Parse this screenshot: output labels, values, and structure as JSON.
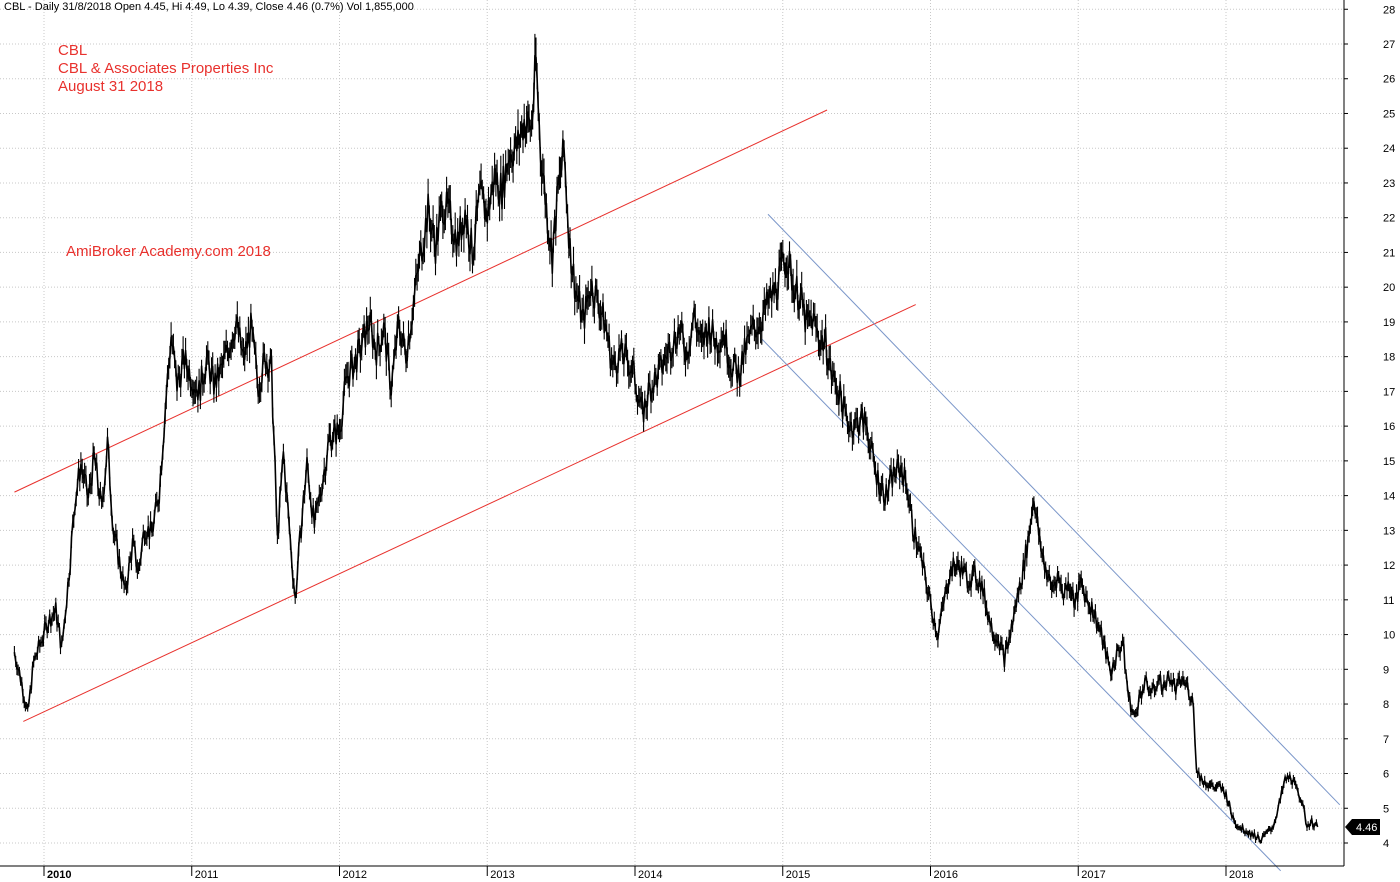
{
  "header": {
    "summary": "CBL - Daily 31/8/2018 Open 4.45, Hi 4.49, Lo 4.39, Close 4.46 (0.7%) Vol 1,855,000"
  },
  "annotations": {
    "ticker": "CBL",
    "company": "CBL & Associates Properties Inc",
    "date": "August 31 2018",
    "watermark": "AmiBroker Academy.com  2018"
  },
  "colors": {
    "price": "#000000",
    "up_channel": "#e8312d",
    "down_channel": "#7a96c9",
    "grid": "#c8c8c8",
    "badge": "#000000"
  },
  "chart_data": {
    "type": "line",
    "title": "CBL",
    "xlabel": "",
    "ylabel": "",
    "ylim": [
      4,
      28
    ],
    "xlim": [
      2009.8,
      2018.85
    ],
    "grid": true,
    "y_axis_side": "right",
    "y_ticks": [
      4,
      5,
      6,
      7,
      8,
      9,
      10,
      11,
      12,
      13,
      14,
      15,
      16,
      17,
      18,
      19,
      20,
      21,
      22,
      23,
      24,
      25,
      26,
      27,
      28
    ],
    "x_ticks": [
      {
        "label": "2010",
        "value": 2010.0,
        "bold": true
      },
      {
        "label": "2011",
        "value": 2011.0,
        "bold": false
      },
      {
        "label": "2012",
        "value": 2012.0,
        "bold": false
      },
      {
        "label": "2013",
        "value": 2013.0,
        "bold": false
      },
      {
        "label": "2014",
        "value": 2014.0,
        "bold": false
      },
      {
        "label": "2015",
        "value": 2015.0,
        "bold": false
      },
      {
        "label": "2016",
        "value": 2016.0,
        "bold": false
      },
      {
        "label": "2017",
        "value": 2017.0,
        "bold": false
      },
      {
        "label": "2018",
        "value": 2018.0,
        "bold": false
      }
    ],
    "last_price": "4.46",
    "series": [
      {
        "name": "CBL Close",
        "points": [
          [
            2009.8,
            9.5
          ],
          [
            2009.85,
            8.6
          ],
          [
            2009.89,
            7.7
          ],
          [
            2009.93,
            9.2
          ],
          [
            2009.98,
            9.8
          ],
          [
            2010.03,
            10.4
          ],
          [
            2010.08,
            10.7
          ],
          [
            2010.12,
            9.6
          ],
          [
            2010.17,
            11.8
          ],
          [
            2010.21,
            13.9
          ],
          [
            2010.25,
            14.9
          ],
          [
            2010.3,
            13.9
          ],
          [
            2010.34,
            15.1
          ],
          [
            2010.39,
            13.6
          ],
          [
            2010.43,
            15.5
          ],
          [
            2010.47,
            13.0
          ],
          [
            2010.51,
            12.1
          ],
          [
            2010.55,
            11.2
          ],
          [
            2010.6,
            12.6
          ],
          [
            2010.64,
            11.8
          ],
          [
            2010.68,
            13.1
          ],
          [
            2010.73,
            12.9
          ],
          [
            2010.78,
            14.1
          ],
          [
            2010.82,
            16.5
          ],
          [
            2010.86,
            18.6
          ],
          [
            2010.9,
            17.2
          ],
          [
            2010.95,
            17.9
          ],
          [
            2011.0,
            17.4
          ],
          [
            2011.05,
            17.0
          ],
          [
            2011.1,
            17.9
          ],
          [
            2011.15,
            17.2
          ],
          [
            2011.2,
            17.6
          ],
          [
            2011.25,
            18.3
          ],
          [
            2011.3,
            19.0
          ],
          [
            2011.35,
            17.9
          ],
          [
            2011.4,
            18.8
          ],
          [
            2011.45,
            17.2
          ],
          [
            2011.5,
            18.0
          ],
          [
            2011.54,
            17.6
          ],
          [
            2011.58,
            12.7
          ],
          [
            2011.62,
            15.2
          ],
          [
            2011.66,
            13.1
          ],
          [
            2011.7,
            11.0
          ],
          [
            2011.74,
            13.1
          ],
          [
            2011.78,
            14.9
          ],
          [
            2011.83,
            13.1
          ],
          [
            2011.88,
            14.3
          ],
          [
            2011.93,
            15.6
          ],
          [
            2012.0,
            15.9
          ],
          [
            2012.05,
            17.4
          ],
          [
            2012.1,
            17.8
          ],
          [
            2012.15,
            18.3
          ],
          [
            2012.2,
            19.0
          ],
          [
            2012.25,
            18.2
          ],
          [
            2012.3,
            18.8
          ],
          [
            2012.35,
            17.1
          ],
          [
            2012.4,
            18.9
          ],
          [
            2012.45,
            18.1
          ],
          [
            2012.5,
            19.5
          ],
          [
            2012.55,
            21.0
          ],
          [
            2012.6,
            22.2
          ],
          [
            2012.65,
            21.2
          ],
          [
            2012.7,
            22.4
          ],
          [
            2012.75,
            22.0
          ],
          [
            2012.8,
            21.3
          ],
          [
            2012.85,
            22.2
          ],
          [
            2012.9,
            21.0
          ],
          [
            2012.95,
            22.6
          ],
          [
            2013.0,
            22.1
          ],
          [
            2013.05,
            23.2
          ],
          [
            2013.1,
            22.8
          ],
          [
            2013.15,
            23.9
          ],
          [
            2013.2,
            24.0
          ],
          [
            2013.25,
            24.8
          ],
          [
            2013.3,
            24.6
          ],
          [
            2013.33,
            26.5
          ],
          [
            2013.36,
            24.0
          ],
          [
            2013.4,
            22.3
          ],
          [
            2013.44,
            20.9
          ],
          [
            2013.48,
            22.8
          ],
          [
            2013.52,
            23.9
          ],
          [
            2013.56,
            21.1
          ],
          [
            2013.6,
            19.9
          ],
          [
            2013.65,
            19.0
          ],
          [
            2013.7,
            20.1
          ],
          [
            2013.75,
            19.6
          ],
          [
            2013.8,
            18.9
          ],
          [
            2013.85,
            17.7
          ],
          [
            2013.9,
            18.1
          ],
          [
            2013.95,
            17.9
          ],
          [
            2014.0,
            17.4
          ],
          [
            2014.05,
            16.3
          ],
          [
            2014.1,
            17.1
          ],
          [
            2014.15,
            17.4
          ],
          [
            2014.2,
            17.9
          ],
          [
            2014.25,
            18.4
          ],
          [
            2014.3,
            18.8
          ],
          [
            2014.35,
            18.1
          ],
          [
            2014.4,
            19.2
          ],
          [
            2014.45,
            18.3
          ],
          [
            2014.5,
            18.9
          ],
          [
            2014.55,
            18.4
          ],
          [
            2014.6,
            18.7
          ],
          [
            2014.65,
            17.8
          ],
          [
            2014.7,
            17.5
          ],
          [
            2014.75,
            18.2
          ],
          [
            2014.8,
            18.8
          ],
          [
            2014.85,
            19.0
          ],
          [
            2014.9,
            19.5
          ],
          [
            2014.95,
            19.9
          ],
          [
            2015.0,
            20.6
          ],
          [
            2015.03,
            20.9
          ],
          [
            2015.07,
            20.1
          ],
          [
            2015.12,
            19.7
          ],
          [
            2015.16,
            18.9
          ],
          [
            2015.2,
            19.1
          ],
          [
            2015.25,
            18.5
          ],
          [
            2015.29,
            18.4
          ],
          [
            2015.33,
            17.5
          ],
          [
            2015.38,
            17.0
          ],
          [
            2015.43,
            16.2
          ],
          [
            2015.48,
            16.0
          ],
          [
            2015.53,
            16.2
          ],
          [
            2015.57,
            16.0
          ],
          [
            2015.62,
            14.8
          ],
          [
            2015.66,
            14.3
          ],
          [
            2015.7,
            14.0
          ],
          [
            2015.75,
            14.6
          ],
          [
            2015.8,
            14.8
          ],
          [
            2015.84,
            14.3
          ],
          [
            2015.88,
            13.1
          ],
          [
            2015.93,
            12.3
          ],
          [
            2015.97,
            11.5
          ],
          [
            2016.01,
            10.7
          ],
          [
            2016.05,
            10.0
          ],
          [
            2016.09,
            10.9
          ],
          [
            2016.13,
            11.8
          ],
          [
            2016.17,
            12.0
          ],
          [
            2016.21,
            11.9
          ],
          [
            2016.25,
            11.6
          ],
          [
            2016.3,
            11.7
          ],
          [
            2016.34,
            11.5
          ],
          [
            2016.38,
            10.8
          ],
          [
            2016.42,
            10.1
          ],
          [
            2016.46,
            9.9
          ],
          [
            2016.5,
            9.3
          ],
          [
            2016.54,
            10.0
          ],
          [
            2016.58,
            10.9
          ],
          [
            2016.62,
            11.7
          ],
          [
            2016.66,
            12.7
          ],
          [
            2016.7,
            14.0
          ],
          [
            2016.74,
            12.6
          ],
          [
            2016.78,
            11.9
          ],
          [
            2016.82,
            11.3
          ],
          [
            2016.86,
            11.7
          ],
          [
            2016.9,
            11.2
          ],
          [
            2016.94,
            11.5
          ],
          [
            2016.98,
            10.9
          ],
          [
            2017.02,
            11.5
          ],
          [
            2017.06,
            11.0
          ],
          [
            2017.1,
            10.7
          ],
          [
            2017.14,
            10.2
          ],
          [
            2017.18,
            9.6
          ],
          [
            2017.22,
            8.9
          ],
          [
            2017.26,
            9.4
          ],
          [
            2017.3,
            9.8
          ],
          [
            2017.34,
            8.2
          ],
          [
            2017.38,
            7.6
          ],
          [
            2017.42,
            8.3
          ],
          [
            2017.46,
            8.6
          ],
          [
            2017.5,
            8.3
          ],
          [
            2017.54,
            8.7
          ],
          [
            2017.58,
            8.5
          ],
          [
            2017.62,
            8.8
          ],
          [
            2017.66,
            8.4
          ],
          [
            2017.7,
            8.7
          ],
          [
            2017.74,
            8.5
          ],
          [
            2017.78,
            8.0
          ],
          [
            2017.8,
            6.1
          ],
          [
            2017.84,
            5.8
          ],
          [
            2017.88,
            5.7
          ],
          [
            2017.92,
            5.6
          ],
          [
            2017.96,
            5.6
          ],
          [
            2018.0,
            5.4
          ],
          [
            2018.04,
            4.8
          ],
          [
            2018.08,
            4.5
          ],
          [
            2018.12,
            4.4
          ],
          [
            2018.16,
            4.3
          ],
          [
            2018.2,
            4.2
          ],
          [
            2018.24,
            4.1
          ],
          [
            2018.28,
            4.3
          ],
          [
            2018.32,
            4.5
          ],
          [
            2018.36,
            5.1
          ],
          [
            2018.4,
            5.8
          ],
          [
            2018.44,
            5.9
          ],
          [
            2018.48,
            5.5
          ],
          [
            2018.52,
            5.2
          ],
          [
            2018.54,
            4.5
          ],
          [
            2018.58,
            4.6
          ],
          [
            2018.62,
            4.46
          ]
        ]
      },
      {
        "name": "Up channel upper",
        "points": [
          [
            2009.8,
            14.1
          ],
          [
            2015.3,
            25.1
          ]
        ]
      },
      {
        "name": "Up channel lower",
        "points": [
          [
            2009.86,
            7.5
          ],
          [
            2015.9,
            19.5
          ]
        ]
      },
      {
        "name": "Down channel upper",
        "points": [
          [
            2014.9,
            22.1
          ],
          [
            2018.77,
            5.1
          ]
        ]
      },
      {
        "name": "Down channel lower",
        "points": [
          [
            2014.86,
            18.5
          ],
          [
            2018.37,
            3.2
          ]
        ]
      }
    ]
  }
}
